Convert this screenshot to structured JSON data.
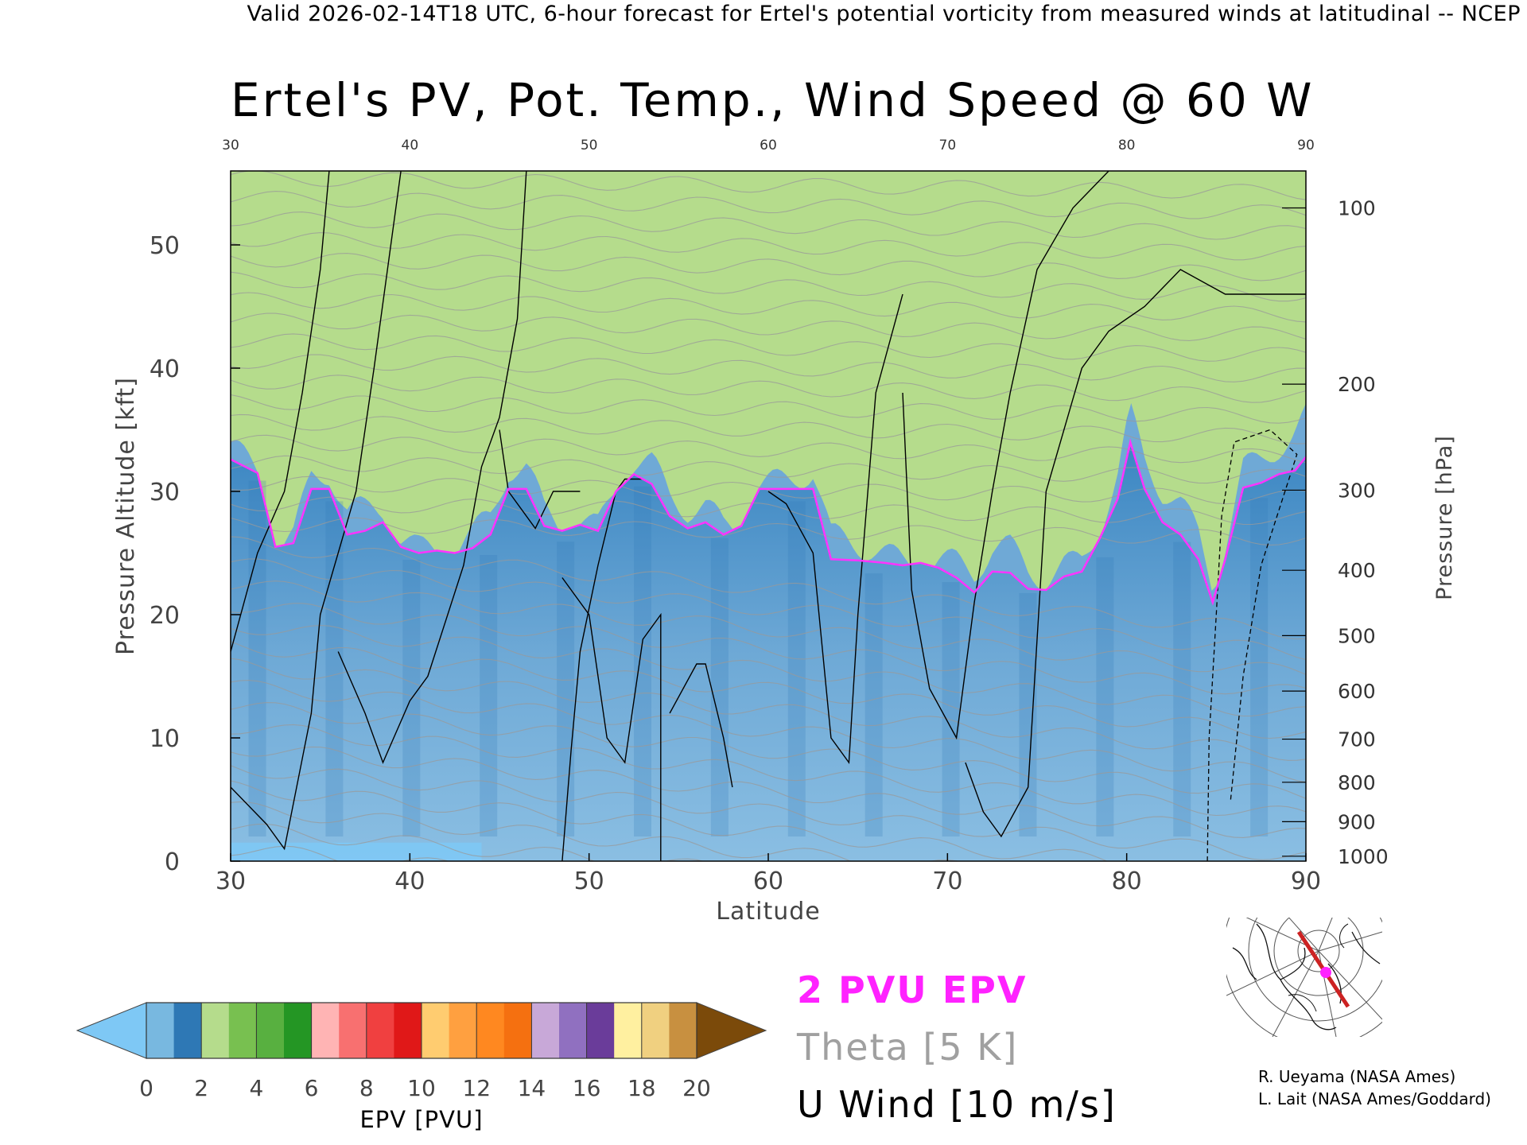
{
  "header": {
    "text": "Valid 2026-02-14T18 UTC, 6-hour forecast for Ertel's potential vorticity from measured winds at latitudinal -- NCEP"
  },
  "chart_data": {
    "type": "heatmap",
    "title": "Ertel's PV, Pot. Temp., Wind Speed @ 60 W",
    "xlabel": "Latitude",
    "ylabel": "Pressure Altitude [kft]",
    "ylabel_right": "Pressure [hPa]",
    "xlim": [
      30,
      90
    ],
    "ylim": [
      0,
      56
    ],
    "x_ticks": [
      "30",
      "40",
      "50",
      "60",
      "70",
      "80",
      "90"
    ],
    "x_ticks_top": [
      "30",
      "40",
      "50",
      "60",
      "70",
      "80",
      "90"
    ],
    "y_ticks": [
      0,
      10,
      20,
      30,
      40,
      50
    ],
    "y_ticks_labels": [
      "0",
      "10",
      "20",
      "30",
      "40",
      "50"
    ],
    "pressure_ticks": [
      {
        "label": "100",
        "kft": 53.0
      },
      {
        "label": "200",
        "kft": 38.7
      },
      {
        "label": "300",
        "kft": 30.1
      },
      {
        "label": "400",
        "kft": 23.6
      },
      {
        "label": "500",
        "kft": 18.3
      },
      {
        "label": "600",
        "kft": 13.8
      },
      {
        "label": "700",
        "kft": 9.9
      },
      {
        "label": "800",
        "kft": 6.4
      },
      {
        "label": "900",
        "kft": 3.2
      },
      {
        "label": "1000",
        "kft": 0.4
      }
    ],
    "tropopause_2pvu": [
      [
        30,
        32.6
      ],
      [
        31.5,
        31.5
      ],
      [
        32.5,
        25.5
      ],
      [
        33.5,
        25.8
      ],
      [
        34.5,
        30.2
      ],
      [
        35.5,
        30.2
      ],
      [
        36.5,
        26.5
      ],
      [
        37.5,
        26.8
      ],
      [
        38.5,
        27.5
      ],
      [
        39.5,
        25.5
      ],
      [
        40.5,
        25.0
      ],
      [
        41.5,
        25.2
      ],
      [
        42.5,
        25.0
      ],
      [
        43.5,
        25.4
      ],
      [
        44.5,
        26.5
      ],
      [
        45.5,
        30.2
      ],
      [
        46.5,
        30.2
      ],
      [
        47.5,
        27.2
      ],
      [
        48.5,
        26.8
      ],
      [
        49.5,
        27.3
      ],
      [
        50.5,
        26.8
      ],
      [
        51.5,
        30.0
      ],
      [
        52.5,
        31.4
      ],
      [
        53.5,
        30.6
      ],
      [
        54.5,
        28.0
      ],
      [
        55.5,
        27.0
      ],
      [
        56.5,
        27.5
      ],
      [
        57.5,
        26.5
      ],
      [
        58.5,
        27.2
      ],
      [
        59.5,
        30.2
      ],
      [
        61.0,
        30.2
      ],
      [
        62.5,
        30.2
      ],
      [
        63.5,
        24.5
      ],
      [
        65,
        24.4
      ],
      [
        66.5,
        24.2
      ],
      [
        67.5,
        24.0
      ],
      [
        68.5,
        24.2
      ],
      [
        69.5,
        23.8
      ],
      [
        70.5,
        23.0
      ],
      [
        71.5,
        21.8
      ],
      [
        72.5,
        23.5
      ],
      [
        73.5,
        23.4
      ],
      [
        74.5,
        22.1
      ],
      [
        75.5,
        22.0
      ],
      [
        76.5,
        23.1
      ],
      [
        77.5,
        23.5
      ],
      [
        78.5,
        26.2
      ],
      [
        79.5,
        29.4
      ],
      [
        80.2,
        34.0
      ],
      [
        81.0,
        30.2
      ],
      [
        82.0,
        27.5
      ],
      [
        83.0,
        26.5
      ],
      [
        84.0,
        24.5
      ],
      [
        84.8,
        21.0
      ],
      [
        85.5,
        24.5
      ],
      [
        86.5,
        30.3
      ],
      [
        87.5,
        30.7
      ],
      [
        88.5,
        31.4
      ],
      [
        89.4,
        31.7
      ],
      [
        90,
        32.8
      ]
    ],
    "colorbar": {
      "label": "EPV [PVU]",
      "ticks": [
        "0",
        "2",
        "4",
        "6",
        "8",
        "10",
        "12",
        "14",
        "16",
        "18",
        "20"
      ],
      "under_color": "#7ec8f5",
      "over_color": "#7b4a0a",
      "levels": [
        {
          "from": 0,
          "to": 1,
          "color": "#78b8e0"
        },
        {
          "from": 1,
          "to": 2,
          "color": "#2e78b5"
        },
        {
          "from": 2,
          "to": 3,
          "color": "#b5dc8c"
        },
        {
          "from": 3,
          "to": 4,
          "color": "#78c050"
        },
        {
          "from": 4,
          "to": 5,
          "color": "#58b040"
        },
        {
          "from": 5,
          "to": 6,
          "color": "#249624"
        },
        {
          "from": 6,
          "to": 7,
          "color": "#ffb4b4"
        },
        {
          "from": 7,
          "to": 8,
          "color": "#f87070"
        },
        {
          "from": 8,
          "to": 9,
          "color": "#f04040"
        },
        {
          "from": 9,
          "to": 10,
          "color": "#e01818"
        },
        {
          "from": 10,
          "to": 11,
          "color": "#ffcc70"
        },
        {
          "from": 11,
          "to": 12,
          "color": "#ffa040"
        },
        {
          "from": 12,
          "to": 13,
          "color": "#ff8820"
        },
        {
          "from": 13,
          "to": 14,
          "color": "#f57010"
        },
        {
          "from": 14,
          "to": 15,
          "color": "#c8a8d8"
        },
        {
          "from": 15,
          "to": 16,
          "color": "#9070c0"
        },
        {
          "from": 16,
          "to": 17,
          "color": "#6a3c9a"
        },
        {
          "from": 17,
          "to": 18,
          "color": "#fff0a0"
        },
        {
          "from": 18,
          "to": 19,
          "color": "#f0d080"
        },
        {
          "from": 19,
          "to": 20,
          "color": "#c89040"
        }
      ]
    },
    "legend": {
      "pvu": "2 PVU EPV",
      "theta": "Theta [5 K]",
      "uwind": "U Wind [10 m/s]"
    }
  },
  "credits": {
    "line1": "R. Ueyama (NASA Ames)",
    "line2": "L. Lait (NASA Ames/Goddard)"
  },
  "colors": {
    "tropopause": "#ff33ff",
    "theta": "#9a9a9a",
    "wind": "#000000",
    "map_path": "#cc2222",
    "map_marker": "#ff22ff"
  }
}
